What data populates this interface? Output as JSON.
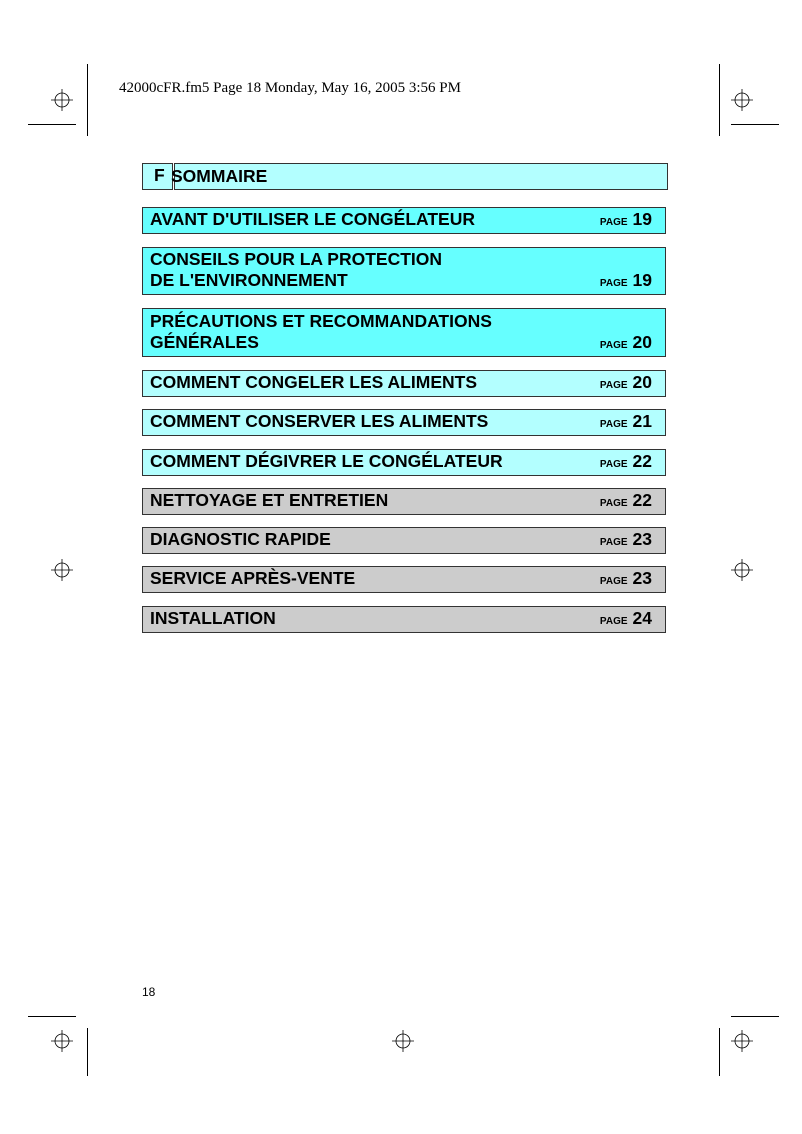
{
  "header": "42000cFR.fm5  Page 18  Monday, May 16, 2005  3:56 PM",
  "title": {
    "letter": "F",
    "label": "SOMMAIRE"
  },
  "page_label": "PAGE",
  "colors": {
    "bright": "#66ffff",
    "light": "#b3ffff",
    "gray": "#cccccc"
  },
  "entries": [
    {
      "lines": [
        "AVANT D'UTILISER LE CONGÉLATEUR"
      ],
      "page": "19"
    },
    {
      "lines": [
        "CONSEILS POUR LA PROTECTION",
        "DE L'ENVIRONNEMENT"
      ],
      "page": "19"
    },
    {
      "lines": [
        "PRÉCAUTIONS ET RECOMMANDATIONS",
        "GÉNÉRALES"
      ],
      "page": "20"
    },
    {
      "lines": [
        "COMMENT CONGELER LES ALIMENTS"
      ],
      "page": "20"
    },
    {
      "lines": [
        "COMMENT CONSERVER LES ALIMENTS"
      ],
      "page": "21"
    },
    {
      "lines": [
        "COMMENT DÉGIVRER LE CONGÉLATEUR"
      ],
      "page": "22"
    },
    {
      "lines": [
        "NETTOYAGE ET ENTRETIEN"
      ],
      "page": "22"
    },
    {
      "lines": [
        "DIAGNOSTIC RAPIDE"
      ],
      "page": "23"
    },
    {
      "lines": [
        "SERVICE APRÈS-VENTE"
      ],
      "page": "23"
    },
    {
      "lines": [
        "INSTALLATION"
      ],
      "page": "24"
    }
  ],
  "page_number": "18"
}
